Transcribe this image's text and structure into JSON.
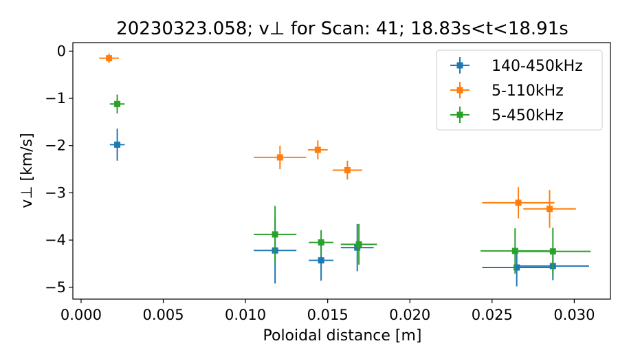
{
  "chart_data": {
    "type": "scatter",
    "title": "20230323.058; v⊥ for Scan: 41; 18.83s<t<18.91s",
    "xlabel": "Poloidal distance [m]",
    "ylabel": "v⊥ [km/s]",
    "xlim": [
      -0.0005,
      0.0322
    ],
    "ylim": [
      -5.25,
      0.18
    ],
    "xticks": [
      0.0,
      0.005,
      0.01,
      0.015,
      0.02,
      0.025,
      0.03
    ],
    "xtick_labels": [
      "0.000",
      "0.005",
      "0.010",
      "0.015",
      "0.020",
      "0.025",
      "0.030"
    ],
    "yticks": [
      0,
      -1,
      -2,
      -3,
      -4,
      -5
    ],
    "ytick_labels": [
      "0",
      "−1",
      "−2",
      "−3",
      "−4",
      "−5"
    ],
    "grid": false,
    "legend_position": "upper right",
    "series": [
      {
        "name": "140-450kHz",
        "color": "#1f77b4",
        "points": [
          {
            "x": 0.0022,
            "y": -1.98,
            "xerr": 0.00045,
            "yerr": 0.34
          },
          {
            "x": 0.0118,
            "y": -4.22,
            "xerr": 0.0013,
            "yerr": 0.7
          },
          {
            "x": 0.0146,
            "y": -4.43,
            "xerr": 0.00075,
            "yerr": 0.43
          },
          {
            "x": 0.0168,
            "y": -4.16,
            "xerr": 0.001,
            "yerr": 0.5
          },
          {
            "x": 0.0265,
            "y": -4.58,
            "xerr": 0.0021,
            "yerr": 0.4
          },
          {
            "x": 0.0287,
            "y": -4.55,
            "xerr": 0.0022,
            "yerr": 0.3
          }
        ]
      },
      {
        "name": "5-110kHz",
        "color": "#ff7f0e",
        "points": [
          {
            "x": 0.0017,
            "y": -0.15,
            "xerr": 0.0006,
            "yerr": 0.1
          },
          {
            "x": 0.0121,
            "y": -2.25,
            "xerr": 0.0016,
            "yerr": 0.25
          },
          {
            "x": 0.0144,
            "y": -2.09,
            "xerr": 0.0006,
            "yerr": 0.2
          },
          {
            "x": 0.0162,
            "y": -2.52,
            "xerr": 0.0009,
            "yerr": 0.2
          },
          {
            "x": 0.0266,
            "y": -3.21,
            "xerr": 0.0022,
            "yerr": 0.33
          },
          {
            "x": 0.0285,
            "y": -3.34,
            "xerr": 0.0016,
            "yerr": 0.4
          }
        ]
      },
      {
        "name": "5-450kHz",
        "color": "#2ca02c",
        "points": [
          {
            "x": 0.0022,
            "y": -1.12,
            "xerr": 0.00045,
            "yerr": 0.2
          },
          {
            "x": 0.0118,
            "y": -3.88,
            "xerr": 0.0013,
            "yerr": 0.6
          },
          {
            "x": 0.0146,
            "y": -4.05,
            "xerr": 0.00075,
            "yerr": 0.26
          },
          {
            "x": 0.0169,
            "y": -4.09,
            "xerr": 0.0011,
            "yerr": 0.43
          },
          {
            "x": 0.0264,
            "y": -4.23,
            "xerr": 0.0021,
            "yerr": 0.48
          },
          {
            "x": 0.0287,
            "y": -4.24,
            "xerr": 0.0023,
            "yerr": 0.5
          }
        ]
      }
    ]
  }
}
